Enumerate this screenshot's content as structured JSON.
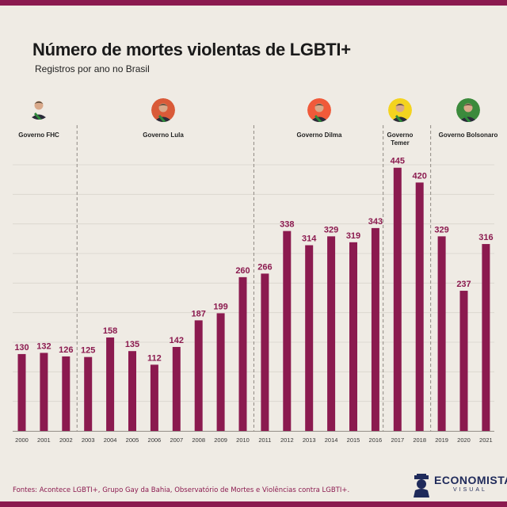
{
  "title": "Número de mortes violentas de LGBTI+",
  "subtitle": "Registros por ano no Brasil",
  "source": "Fontes: Acontece LGBTI+, Grupo Gay da Bahia, Observatório de Mortes e Violências contra LGBTI+.",
  "brand": {
    "name": "ECONOMISTA",
    "tagline": "VISUAL"
  },
  "colors": {
    "bar": "#8b1a4f",
    "background": "#efebe4",
    "label": "#8b1a4f"
  },
  "governments": [
    {
      "label": "Governo FHC",
      "start_year": "2000",
      "end_year": "2002",
      "portrait_icon": "president-portrait-icon",
      "sash": "#2e8a3c"
    },
    {
      "label": "Governo Lula",
      "start_year": "2003",
      "end_year": "2010",
      "portrait_icon": "president-portrait-icon",
      "sash": "#2e8a3c"
    },
    {
      "label": "Governo Dilma",
      "start_year": "2011",
      "end_year": "2016",
      "portrait_icon": "president-portrait-icon",
      "sash": "#2e8a3c"
    },
    {
      "label": "Governo Temer",
      "start_year": "2016",
      "end_year": "2018",
      "portrait_icon": "president-portrait-icon",
      "sash": "#2e8a3c"
    },
    {
      "label": "Governo Bolsonaro",
      "start_year": "2019",
      "end_year": "2021",
      "portrait_icon": "president-portrait-icon",
      "sash": "#2e8a3c"
    }
  ],
  "chart_data": {
    "type": "bar",
    "title": "Número de mortes violentas de LGBTI+",
    "subtitle": "Registros por ano no Brasil",
    "xlabel": "",
    "ylabel": "",
    "ylim": [
      0,
      500
    ],
    "grid": true,
    "categories": [
      "2000",
      "2001",
      "2002",
      "2003",
      "2004",
      "2005",
      "2006",
      "2007",
      "2008",
      "2009",
      "2010",
      "2011",
      "2012",
      "2013",
      "2014",
      "2015",
      "2016",
      "2017",
      "2018",
      "2019",
      "2020",
      "2021"
    ],
    "values": [
      130,
      132,
      126,
      125,
      158,
      135,
      112,
      142,
      187,
      199,
      260,
      266,
      338,
      314,
      329,
      319,
      343,
      445,
      420,
      329,
      237,
      316
    ],
    "data_labels": [
      "130",
      "132",
      "126",
      "125",
      "158",
      "135",
      "112",
      "142",
      "187",
      "199",
      "260",
      "266",
      "338",
      "314",
      "329",
      "319",
      "343",
      "445",
      "420",
      "329",
      "237",
      "316"
    ]
  }
}
